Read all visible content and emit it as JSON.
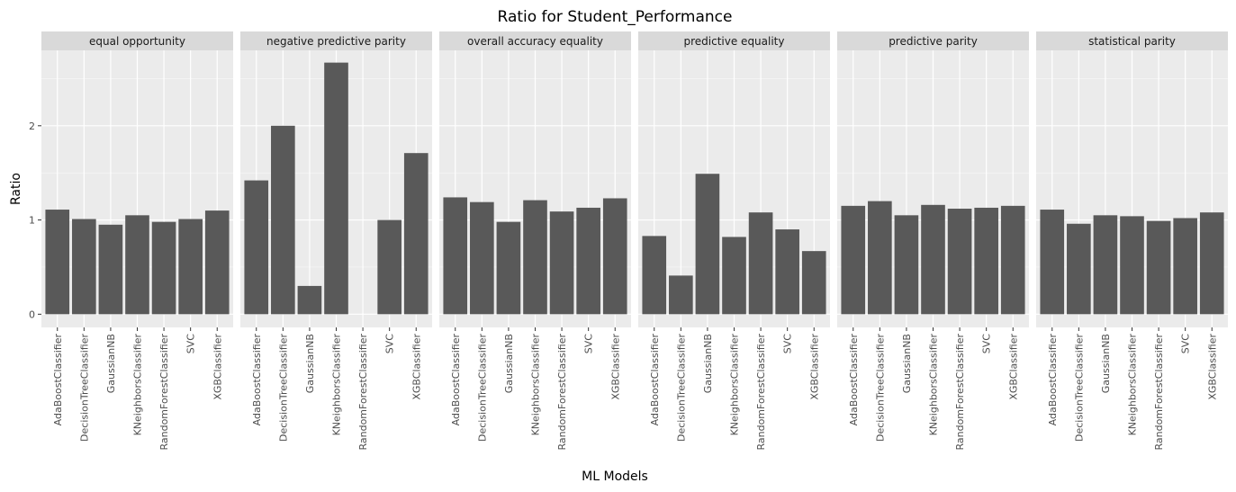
{
  "chart_data": {
    "type": "bar",
    "title": "Ratio for Student_Performance",
    "xlabel": "ML Models",
    "ylabel": "Ratio",
    "ylim": [
      -0.14,
      2.8
    ],
    "yticks": [
      0,
      1,
      2
    ],
    "grid": true,
    "legend": "none",
    "colors": {
      "bar": "#595959",
      "panel_bg": "#ebebeb",
      "strip_bg": "#d9d9d9",
      "grid": "#ffffff"
    },
    "categories": [
      "AdaBoostClassifier",
      "DecisionTreeClassifier",
      "GaussianNB",
      "KNeighborsClassifier",
      "RandomForestClassifier",
      "SVC",
      "XGBClassifier"
    ],
    "facets": [
      {
        "name": "equal opportunity",
        "values": [
          1.11,
          1.01,
          0.95,
          1.05,
          0.98,
          1.01,
          1.1
        ]
      },
      {
        "name": "negative predictive parity",
        "values": [
          1.42,
          2.0,
          0.3,
          2.67,
          0,
          1.0,
          1.71
        ]
      },
      {
        "name": "overall accuracy equality",
        "values": [
          1.24,
          1.19,
          0.98,
          1.21,
          1.09,
          1.13,
          1.23
        ]
      },
      {
        "name": "predictive equality",
        "values": [
          0.83,
          0.41,
          1.49,
          0.82,
          1.08,
          0.9,
          0.67
        ]
      },
      {
        "name": "predictive parity",
        "values": [
          1.15,
          1.2,
          1.05,
          1.16,
          1.12,
          1.13,
          1.15
        ]
      },
      {
        "name": "statistical parity",
        "values": [
          1.11,
          0.96,
          1.05,
          1.04,
          0.99,
          1.02,
          1.08
        ]
      }
    ]
  }
}
